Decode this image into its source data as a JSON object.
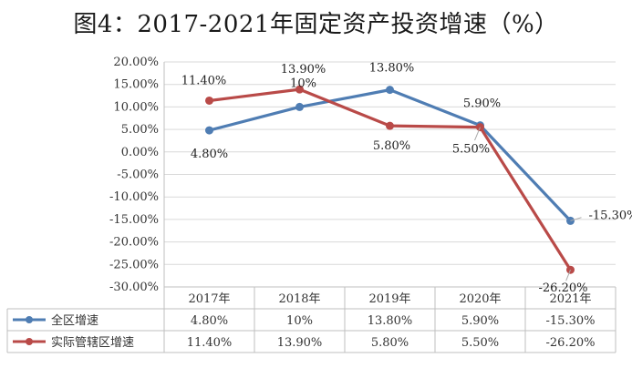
{
  "title": "图4：2017-2021年固定资产投资增速（%）",
  "chart_data": {
    "type": "line",
    "title": "图4：2017-2021年固定资产投资增速（%）",
    "categories": [
      "2017年",
      "2018年",
      "2019年",
      "2020年",
      "2021年"
    ],
    "y_ticks": [
      "20.00%",
      "15.00%",
      "10.00%",
      "5.00%",
      "0.00%",
      "-5.00%",
      "-10.00%",
      "-15.00%",
      "-20.00%",
      "-25.00%",
      "-30.00%"
    ],
    "ylim": [
      -30,
      20
    ],
    "grid": true,
    "legend": "data-table-left",
    "series": [
      {
        "name": "全区增速",
        "color": "#4f7db3",
        "values": [
          4.8,
          10,
          13.8,
          5.9,
          -15.3
        ],
        "labels": [
          "4.80%",
          "10%",
          "13.80%",
          "5.90%",
          "-15.30%"
        ]
      },
      {
        "name": "实际管辖区增速",
        "color": "#b94a48",
        "values": [
          11.4,
          13.9,
          5.8,
          5.5,
          -26.2
        ],
        "labels": [
          "11.40%",
          "13.90%",
          "5.80%",
          "5.50%",
          "-26.20%"
        ]
      }
    ]
  }
}
